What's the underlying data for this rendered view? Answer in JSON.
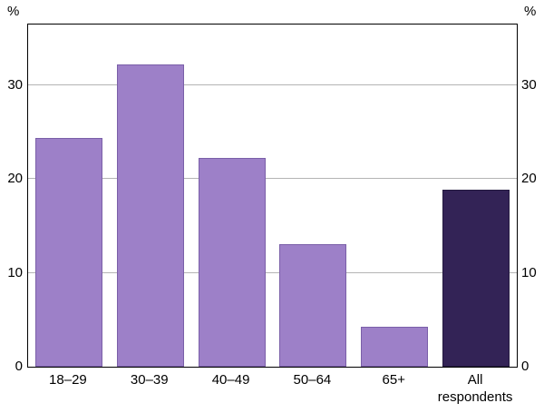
{
  "axes": {
    "left_unit": "%",
    "right_unit": "%"
  },
  "chart_data": {
    "type": "bar",
    "categories": [
      "18–29",
      "30–39",
      "40–49",
      "50–64",
      "65+",
      "All respondents"
    ],
    "values": [
      24.4,
      32.2,
      22.3,
      13.1,
      4.3,
      18.9
    ],
    "xlabel": "",
    "ylabel": "%",
    "ylim": [
      0,
      36.5
    ],
    "yticks": [
      0,
      10,
      20,
      30
    ],
    "gridlines": [
      10,
      20,
      30
    ],
    "grid": "horizontal",
    "legend_position": "none",
    "bar_color": "#9d80c8",
    "bar_border_color": "#7a5fa8",
    "highlight_index": 5,
    "highlight_color": "#332356",
    "highlight_border_color": "#241a40"
  }
}
